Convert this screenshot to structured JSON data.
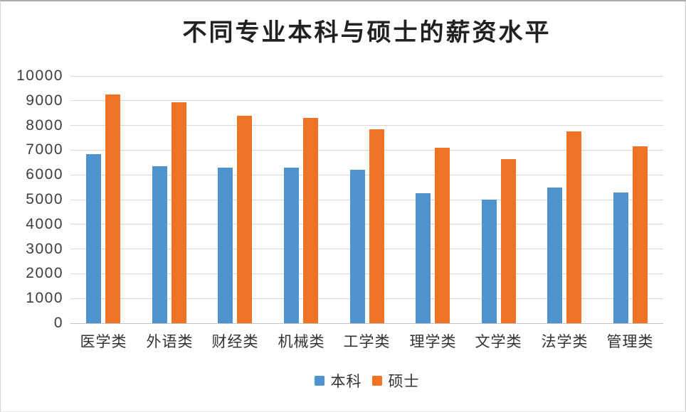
{
  "title": "不同专业本科与硕士的薪资水平",
  "chart_data": {
    "type": "bar",
    "title": "不同专业本科与硕士的薪资水平",
    "categories": [
      "医学类",
      "外语类",
      "财经类",
      "机械类",
      "工学类",
      "理学类",
      "文学类",
      "法学类",
      "管理类"
    ],
    "series": [
      {
        "key": "undergraduate",
        "name": "本科",
        "color": "#4E93CE",
        "values": [
          6850,
          6350,
          6300,
          6300,
          6200,
          5250,
          5000,
          5500,
          5300
        ]
      },
      {
        "key": "master",
        "name": "硕士",
        "color": "#ED7425",
        "values": [
          9250,
          8950,
          8400,
          8300,
          7850,
          7100,
          6650,
          7750,
          7150
        ]
      }
    ],
    "xlabel": "",
    "ylabel": "",
    "ylim": [
      0,
      10000
    ],
    "ytick_step": 1000,
    "yticks": [
      0,
      1000,
      2000,
      3000,
      4000,
      5000,
      6000,
      7000,
      8000,
      9000,
      10000
    ],
    "grid": true,
    "legend_position": "bottom"
  },
  "colors": {
    "series_undergraduate": "#4E93CE",
    "series_master": "#ED7425",
    "gridline": "#D8D8D8",
    "axis_line": "#C2C2C2",
    "tick_text": "#3D3D3D",
    "title_text": "#212121"
  }
}
